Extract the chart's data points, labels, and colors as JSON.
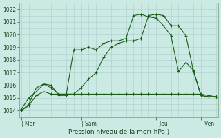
{
  "bg_color": "#cceae4",
  "grid_color": "#aacccc",
  "line_color": "#1a5c1a",
  "line_width": 0.8,
  "marker": "+",
  "marker_size": 3.5,
  "ylabel": "Pression niveau de la mer( hPa )",
  "ylim": [
    1013.5,
    1022.5
  ],
  "yticks": [
    1014,
    1015,
    1016,
    1017,
    1018,
    1019,
    1020,
    1021,
    1022
  ],
  "xtick_labels": [
    "| Mer",
    "| Sam",
    "| Jeu",
    "| Ven"
  ],
  "xtick_positions": [
    0,
    8,
    18,
    24
  ],
  "total_points": 27,
  "series": [
    [
      1014.0,
      1014.5,
      1015.8,
      1016.1,
      1016.0,
      1015.2,
      1015.2,
      1018.8,
      1018.8,
      1019.0,
      1018.8,
      1019.3,
      1019.5,
      1019.5,
      1019.7,
      1021.5,
      1021.6,
      1021.4,
      1021.3,
      1020.7,
      1019.9,
      1017.1,
      1017.8,
      1017.2,
      1015.2,
      1015.1,
      1015.1
    ],
    [
      1014.1,
      1015.0,
      1015.5,
      1016.1,
      1015.8,
      1015.3,
      1015.3,
      1015.3,
      1015.8,
      1016.5,
      1017.0,
      1018.2,
      1019.0,
      1019.3,
      1019.5,
      1019.5,
      1019.7,
      1021.5,
      1021.6,
      1021.5,
      1020.7,
      1020.7,
      1019.9,
      1017.1,
      1015.2,
      1015.1,
      1015.1
    ],
    [
      1014.0,
      1014.4,
      1015.2,
      1015.5,
      1015.3,
      1015.3,
      1015.3,
      1015.3,
      1015.3,
      1015.3,
      1015.3,
      1015.3,
      1015.3,
      1015.3,
      1015.3,
      1015.3,
      1015.3,
      1015.3,
      1015.3,
      1015.3,
      1015.3,
      1015.3,
      1015.3,
      1015.3,
      1015.3,
      1015.2,
      1015.1
    ]
  ]
}
